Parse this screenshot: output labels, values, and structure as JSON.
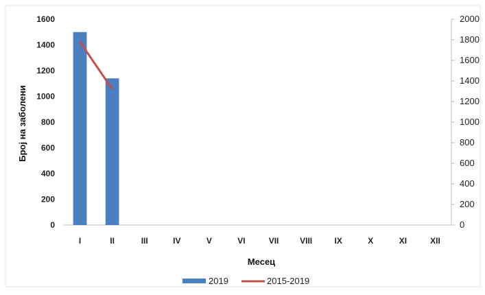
{
  "chart_data": {
    "type": "bar",
    "title": "",
    "xlabel": "Месец",
    "ylabel": "Број на заболени",
    "categories": [
      "I",
      "II",
      "III",
      "IV",
      "V",
      "VI",
      "VII",
      "VIII",
      "IX",
      "X",
      "XI",
      "XII"
    ],
    "y_left": {
      "min": 0,
      "max": 1600,
      "step": 200,
      "ticks": [
        "0",
        "200",
        "400",
        "600",
        "800",
        "1000",
        "1200",
        "1400",
        "1600"
      ]
    },
    "y_right": {
      "min": 0,
      "max": 2000,
      "step": 200,
      "ticks": [
        "0",
        "200",
        "400",
        "600",
        "800",
        "1000",
        "1200",
        "1400",
        "1600",
        "1800",
        "2000"
      ]
    },
    "series": [
      {
        "name": "2019",
        "type": "bar",
        "axis": "left",
        "color": "#4a7fc1",
        "values": [
          1500,
          1140,
          null,
          null,
          null,
          null,
          null,
          null,
          null,
          null,
          null,
          null
        ]
      },
      {
        "name": "2015-2019",
        "type": "line",
        "axis": "right",
        "color": "#c0504d",
        "values": [
          1780,
          1320,
          null,
          null,
          null,
          null,
          null,
          null,
          null,
          null,
          null,
          null
        ]
      }
    ],
    "legend": "bottom",
    "grid": false
  }
}
